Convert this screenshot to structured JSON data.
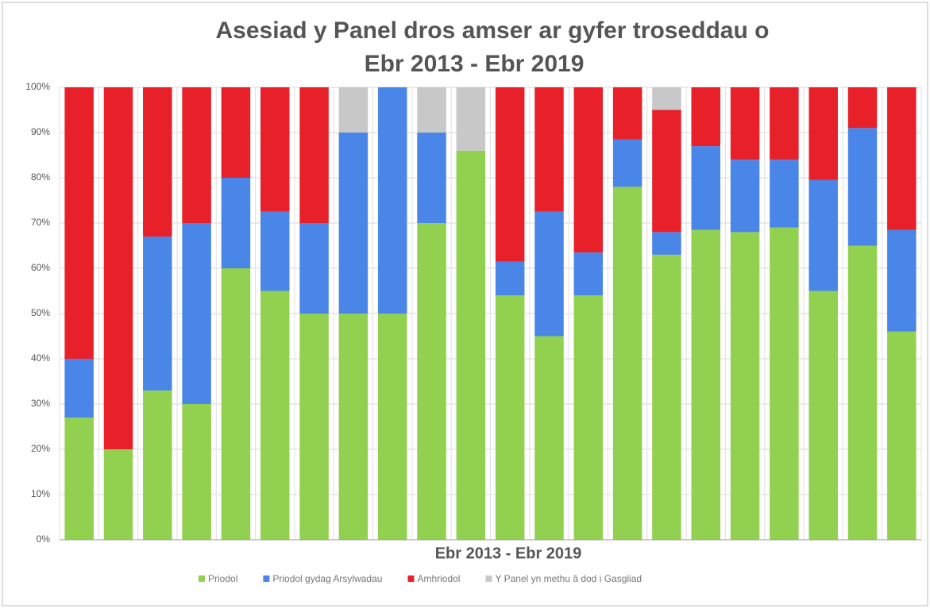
{
  "chart_data": {
    "type": "stacked_bar",
    "title_lines": [
      "Asesiad y Panel dros amser ar gyfer troseddau o",
      "Ebr 2013 - Ebr 2019"
    ],
    "x_label": "Ebr 2013 - Ebr 2019",
    "categories": [
      null,
      null,
      null,
      null,
      null,
      null,
      null,
      null,
      null,
      null,
      null,
      null,
      null,
      null,
      null,
      null,
      null,
      null,
      null,
      null,
      null,
      null
    ],
    "series": [
      {
        "name": "Priodol",
        "color": "#92d050",
        "values": [
          27,
          20,
          33,
          30,
          60,
          55,
          50,
          50,
          50,
          70,
          86,
          54,
          45,
          54,
          78,
          63,
          68.5,
          68,
          69,
          55,
          65,
          46
        ]
      },
      {
        "name": "Priodol gydag Arsylwadau",
        "color": "#4a86e8",
        "values": [
          13,
          0,
          34,
          40,
          20,
          17.5,
          20,
          40,
          50,
          20,
          0,
          7.5,
          27.5,
          9.5,
          10.5,
          5,
          18.5,
          16,
          15,
          24.5,
          26,
          22.5
        ]
      },
      {
        "name": "Amhriodol",
        "color": "#e8202a",
        "values": [
          60,
          80,
          33,
          30,
          20,
          27.5,
          30,
          0,
          0,
          0,
          0,
          38.5,
          27.5,
          36.5,
          11.5,
          27,
          13,
          16,
          16,
          20.5,
          9,
          31.5
        ]
      },
      {
        "name": "Y Panel yn methu â dod i Gasgliad",
        "color": "#c8c8c8",
        "values": [
          0,
          0,
          0,
          0,
          0,
          0,
          0,
          10,
          0,
          10,
          14,
          0,
          0,
          0,
          0,
          5,
          0,
          0,
          0,
          0,
          0,
          0
        ]
      }
    ],
    "ylim": [
      0,
      100
    ],
    "yticks": [
      {
        "value": 0,
        "label": "0%"
      },
      {
        "value": 10,
        "label": "10%"
      },
      {
        "value": 20,
        "label": "20%"
      },
      {
        "value": 30,
        "label": "30%"
      },
      {
        "value": 40,
        "label": "40%"
      },
      {
        "value": 50,
        "label": "50%"
      },
      {
        "value": 60,
        "label": "60%"
      },
      {
        "value": 70,
        "label": "70%"
      },
      {
        "value": 80,
        "label": "80%"
      },
      {
        "value": 90,
        "label": "90%"
      },
      {
        "value": 100,
        "label": "100%"
      }
    ],
    "grid": true
  }
}
